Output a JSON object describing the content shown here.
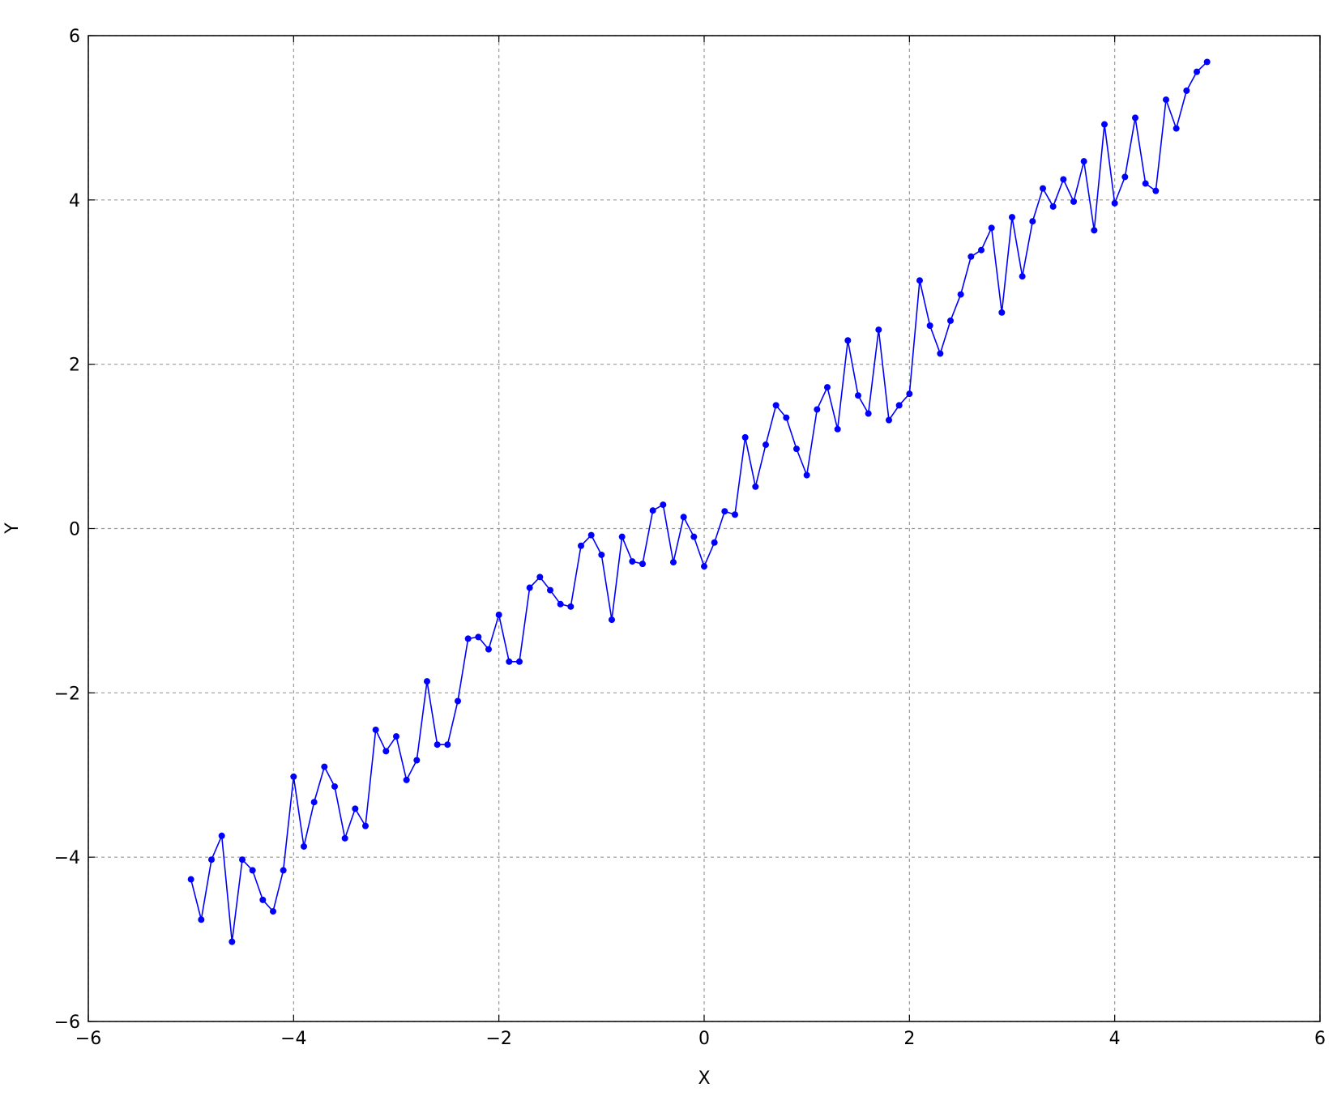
{
  "chart_data": {
    "type": "line",
    "xlabel": "X",
    "ylabel": "Y",
    "x": [
      -5.0,
      -4.9,
      -4.8,
      -4.7,
      -4.6,
      -4.5,
      -4.4,
      -4.3,
      -4.2,
      -4.1,
      -4.0,
      -3.9,
      -3.8,
      -3.7,
      -3.6,
      -3.5,
      -3.4,
      -3.3,
      -3.2,
      -3.1,
      -3.0,
      -2.9,
      -2.8,
      -2.7,
      -2.6,
      -2.5,
      -2.4,
      -2.3,
      -2.2,
      -2.1,
      -2.0,
      -1.9,
      -1.8,
      -1.7,
      -1.6,
      -1.5,
      -1.4,
      -1.3,
      -1.2,
      -1.1,
      -1.0,
      -0.9,
      -0.8,
      -0.7,
      -0.6,
      -0.5,
      -0.4,
      -0.3,
      -0.2,
      -0.1,
      0.0,
      0.1,
      0.2,
      0.3,
      0.4,
      0.5,
      0.6,
      0.7,
      0.8,
      0.9,
      1.0,
      1.1,
      1.2,
      1.3,
      1.4,
      1.5,
      1.6,
      1.7,
      1.8,
      1.9,
      2.0,
      2.1,
      2.2,
      2.3,
      2.4,
      2.5,
      2.6,
      2.7,
      2.8,
      2.9,
      3.0,
      3.1,
      3.2,
      3.3,
      3.4,
      3.5,
      3.6,
      3.7,
      3.8,
      3.9,
      4.0,
      4.1,
      4.2,
      4.3,
      4.4,
      4.5,
      4.6,
      4.7,
      4.8,
      4.9
    ],
    "values": [
      -4.27,
      -4.76,
      -4.03,
      -3.74,
      -5.03,
      -4.03,
      -4.16,
      -4.52,
      -4.66,
      -4.16,
      -3.02,
      -3.87,
      -3.33,
      -2.9,
      -3.14,
      -3.77,
      -3.41,
      -3.62,
      -2.45,
      -2.71,
      -2.53,
      -3.06,
      -2.82,
      -1.86,
      -2.63,
      -2.63,
      -2.1,
      -1.34,
      -1.32,
      -1.47,
      -1.05,
      -1.62,
      -1.62,
      -0.72,
      -0.59,
      -0.75,
      -0.92,
      -0.95,
      -0.21,
      -0.08,
      -0.32,
      -1.11,
      -0.1,
      -0.4,
      -0.43,
      0.22,
      0.29,
      -0.41,
      0.14,
      -0.1,
      -0.46,
      -0.17,
      0.21,
      0.17,
      1.11,
      0.51,
      1.02,
      1.5,
      1.35,
      0.97,
      0.65,
      1.45,
      1.72,
      1.21,
      2.29,
      1.62,
      1.4,
      2.42,
      1.32,
      1.5,
      1.64,
      3.02,
      2.47,
      2.13,
      2.53,
      2.85,
      3.31,
      3.39,
      3.66,
      2.63,
      3.79,
      3.07,
      3.74,
      4.14,
      3.92,
      4.25,
      3.98,
      4.47,
      3.63,
      4.92,
      3.96,
      4.28,
      5.0,
      4.2,
      4.11,
      5.22,
      4.87,
      5.33,
      5.56,
      5.68
    ],
    "color": "#0000ff",
    "xlim": [
      -6,
      6
    ],
    "ylim": [
      -6,
      6
    ],
    "xticks": [
      {
        "value": -6,
        "label": "−6"
      },
      {
        "value": -4,
        "label": "−4"
      },
      {
        "value": -2,
        "label": "−2"
      },
      0,
      2,
      4,
      6
    ],
    "yticks": [
      {
        "value": -6,
        "label": "−6"
      },
      {
        "value": -4,
        "label": "−4"
      },
      {
        "value": -2,
        "label": "−2"
      },
      0,
      2,
      4,
      6
    ],
    "grid": true
  }
}
